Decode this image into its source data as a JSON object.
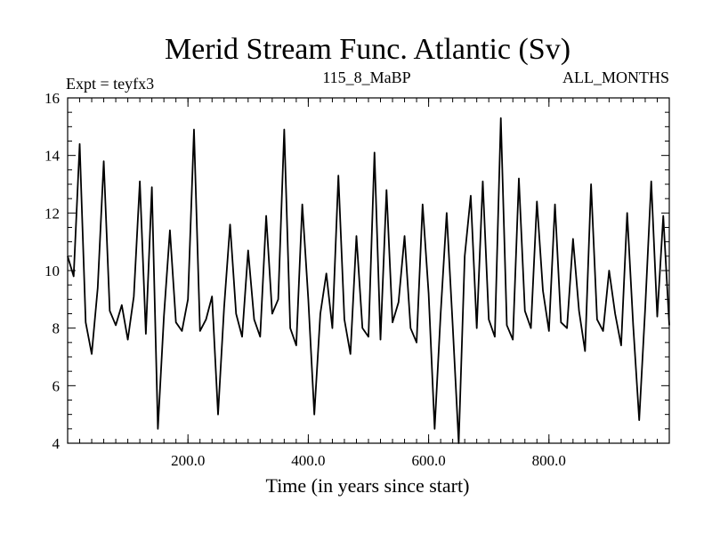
{
  "chart_data": {
    "type": "line",
    "title": "Merid Stream Func. Atlantic (Sv)",
    "subtitle_left": "Expt = teyfx3",
    "subtitle_center": "115_8_MaBP",
    "subtitle_right": "ALL_MONTHS",
    "xlabel": "Time (in years since start)",
    "ylabel": "",
    "xlim": [
      0,
      1000
    ],
    "ylim": [
      4,
      16
    ],
    "xticks": [
      200,
      400,
      600,
      800
    ],
    "xtick_labels": [
      "200.0",
      "400.0",
      "600.0",
      "800.0"
    ],
    "yticks": [
      4,
      6,
      8,
      10,
      12,
      14,
      16
    ],
    "ytick_labels": [
      "4",
      "6",
      "8",
      "10",
      "12",
      "14",
      "16"
    ],
    "grid": false,
    "line_color": "#000000",
    "series": [
      {
        "x": [
          0,
          10,
          20,
          30,
          40,
          50,
          60,
          70,
          80,
          90,
          100,
          110,
          120,
          130,
          140,
          150,
          160,
          170,
          180,
          190,
          200,
          210,
          220,
          230,
          240,
          250,
          260,
          270,
          280,
          290,
          300,
          310,
          320,
          330,
          340,
          350,
          360,
          370,
          380,
          390,
          400,
          410,
          420,
          430,
          440,
          450,
          460,
          470,
          480,
          490,
          500,
          510,
          520,
          530,
          540,
          550,
          560,
          570,
          580,
          590,
          600,
          610,
          620,
          630,
          640,
          650,
          660,
          670,
          680,
          690,
          700,
          710,
          720,
          730,
          740,
          750,
          760,
          770,
          780,
          790,
          800,
          810,
          820,
          830,
          840,
          850,
          860,
          870,
          880,
          890,
          900,
          910,
          920,
          930,
          940,
          950,
          960,
          970,
          980,
          990,
          1000
        ],
        "values": [
          10.5,
          9.8,
          14.4,
          8.2,
          7.1,
          9.4,
          13.8,
          8.6,
          8.1,
          8.8,
          7.6,
          9.1,
          13.1,
          7.8,
          12.9,
          4.5,
          8.4,
          11.4,
          8.2,
          7.9,
          9.0,
          14.9,
          7.9,
          8.3,
          9.1,
          5.0,
          8.7,
          11.6,
          8.5,
          7.7,
          10.7,
          8.3,
          7.7,
          11.9,
          8.5,
          9.0,
          14.9,
          8.0,
          7.4,
          12.3,
          9.0,
          5.0,
          8.5,
          9.9,
          8.0,
          13.3,
          8.3,
          7.1,
          11.2,
          8.0,
          7.7,
          14.1,
          7.6,
          12.8,
          8.2,
          8.9,
          11.2,
          8.0,
          7.5,
          12.3,
          9.2,
          4.5,
          8.5,
          12.0,
          8.1,
          4.0,
          10.5,
          12.6,
          8.0,
          13.1,
          8.3,
          7.7,
          15.3,
          8.1,
          7.6,
          13.2,
          8.6,
          8.0,
          12.4,
          9.3,
          7.9,
          12.3,
          8.2,
          8.0,
          11.1,
          8.6,
          7.2,
          13.0,
          8.3,
          7.9,
          10.0,
          8.5,
          7.4,
          12.0,
          8.1,
          4.8,
          8.7,
          13.1,
          8.4,
          11.9,
          8.1
        ]
      }
    ]
  }
}
